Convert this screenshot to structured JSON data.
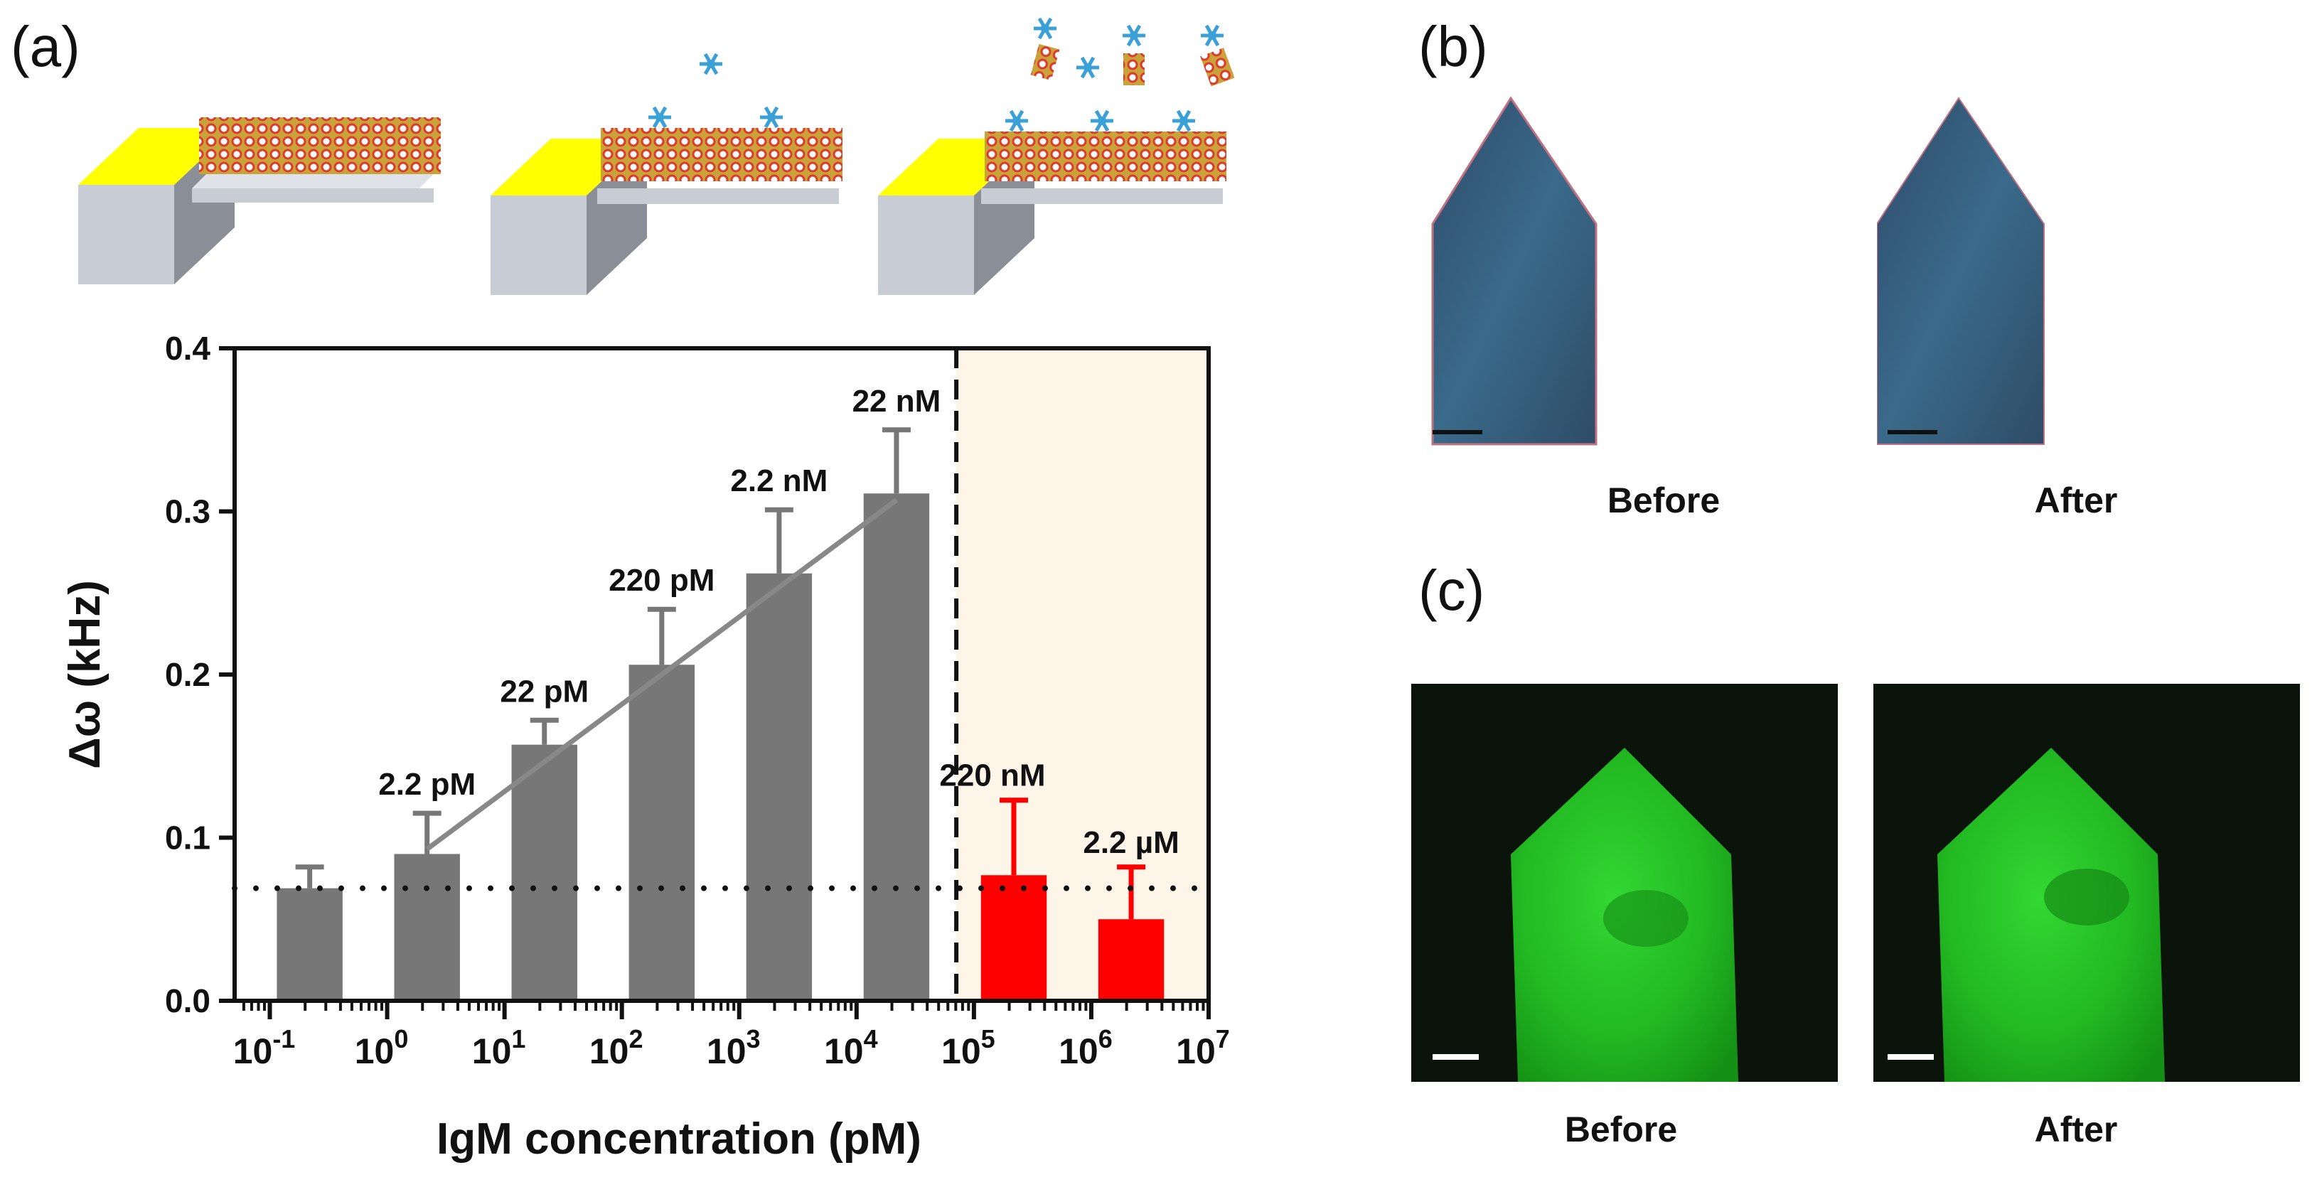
{
  "panels": {
    "a": "(a)",
    "b": "(b)",
    "c": "(c)"
  },
  "captions": {
    "b_before": "Before",
    "b_after": "After",
    "c_before": "Before",
    "c_after": "After"
  },
  "colors": {
    "gray_bar": "#777777",
    "red_bar": "#ff0000",
    "shade": "#fdf5e8",
    "gold": "#ffff00",
    "substrate": "#c8ccd4"
  },
  "chart_data": {
    "type": "bar",
    "xlabel": "IgM concentration (pM)",
    "ylabel": "Δω (kHz)",
    "xscale": "log",
    "xlim_log10": [
      -1.3,
      7
    ],
    "ylim": [
      0,
      0.4
    ],
    "yticks": [
      0.0,
      0.1,
      0.2,
      0.3,
      0.4
    ],
    "ytick_labels": [
      "0.0",
      "0.1",
      "0.2",
      "0.3",
      "0.4"
    ],
    "xticks_log10": [
      -1,
      0,
      1,
      2,
      3,
      4,
      5,
      6,
      7
    ],
    "xtick_labels": [
      "-1",
      "0",
      "1",
      "2",
      "3",
      "4",
      "5",
      "6",
      "7"
    ],
    "xtick_base": "10",
    "detection_limit": 0.069,
    "cutoff_log10": 4.85,
    "bars": [
      {
        "x_log10": -0.66,
        "value": 0.069,
        "error": 0.013,
        "label": "",
        "color": "gray"
      },
      {
        "x_log10": 0.34,
        "value": 0.09,
        "error": 0.025,
        "label": "2.2 pM",
        "color": "gray"
      },
      {
        "x_log10": 1.34,
        "value": 0.157,
        "error": 0.015,
        "label": "22 pM",
        "color": "gray"
      },
      {
        "x_log10": 2.34,
        "value": 0.206,
        "error": 0.034,
        "label": "220 pM",
        "color": "gray"
      },
      {
        "x_log10": 3.34,
        "value": 0.262,
        "error": 0.039,
        "label": "2.2 nM",
        "color": "gray"
      },
      {
        "x_log10": 4.34,
        "value": 0.311,
        "error": 0.039,
        "label": "22 nM",
        "color": "gray"
      },
      {
        "x_log10": 5.34,
        "value": 0.077,
        "error": 0.046,
        "label": "220 nM",
        "color": "red"
      },
      {
        "x_log10": 6.34,
        "value": 0.05,
        "error": 0.032,
        "label": "2.2 µM",
        "color": "red"
      }
    ],
    "fit_line": {
      "x_log10": [
        0.34,
        4.34
      ],
      "y": [
        0.093,
        0.307
      ]
    }
  }
}
